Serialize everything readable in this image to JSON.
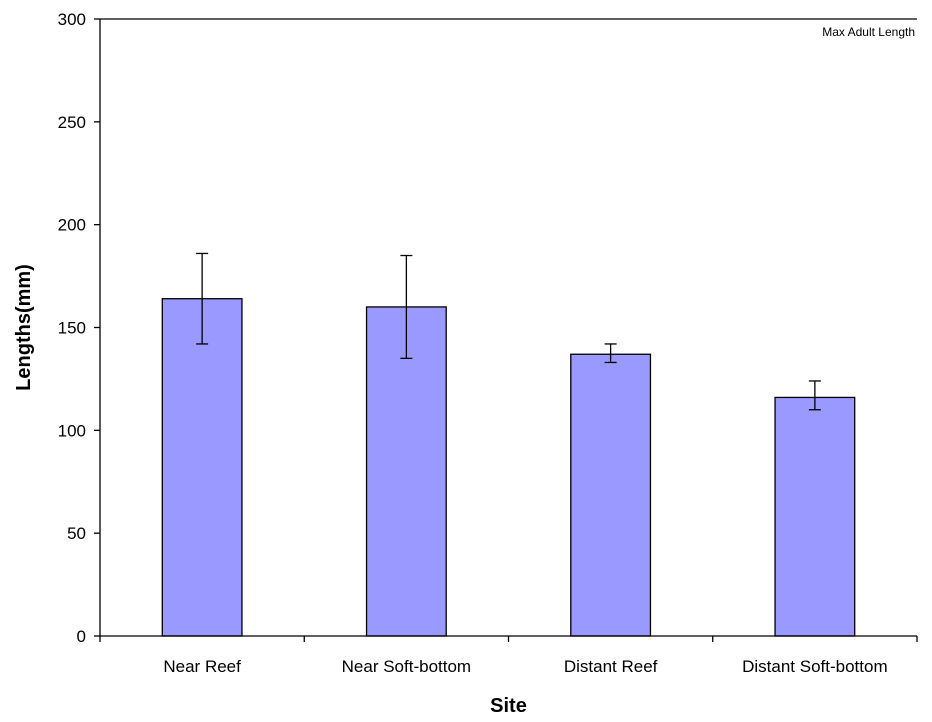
{
  "chart_data": {
    "type": "bar",
    "categories": [
      "Near Reef",
      "Near Soft-bottom",
      "Distant Reef",
      "Distant Soft-bottom"
    ],
    "values": [
      164,
      160,
      137,
      116
    ],
    "error_low": [
      142,
      135,
      133,
      110
    ],
    "error_high": [
      186,
      185,
      142,
      124
    ],
    "xlabel": "Site",
    "ylabel": "Lengths(mm)",
    "ylim": [
      0,
      300
    ],
    "yticks": [
      0,
      50,
      100,
      150,
      200,
      250,
      300
    ],
    "reference_line": {
      "value": 300,
      "label": "Max Adult Length"
    },
    "bar_color": "#9999ff",
    "grid": false
  }
}
